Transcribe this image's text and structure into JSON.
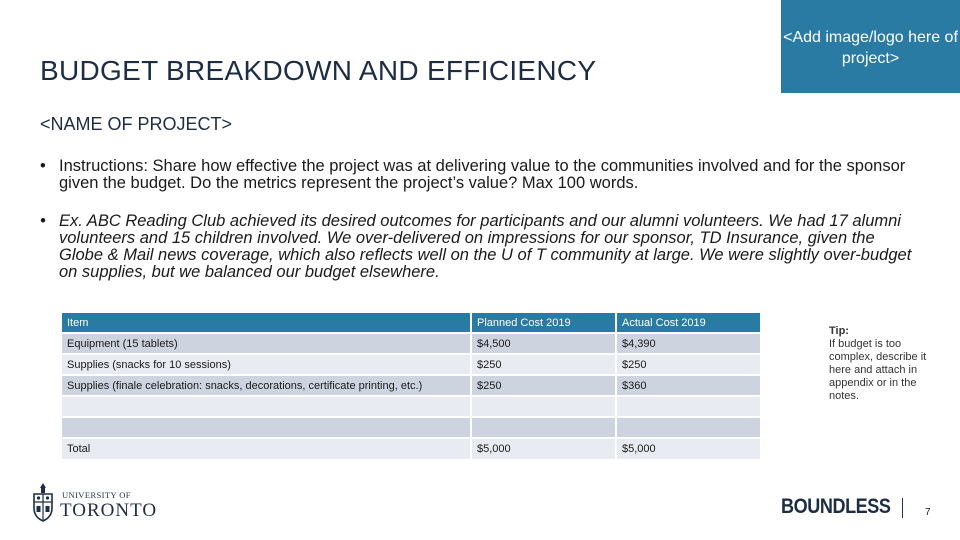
{
  "slide": {
    "title": "BUDGET BREAKDOWN AND EFFICIENCY",
    "project_name": "<NAME OF PROJECT>",
    "logo_placeholder": "<Add image/logo here of project>",
    "bullets": [
      "Instructions: Share how effective the project was at delivering value to the communities involved and for the sponsor given the budget. Do the metrics represent the project’s value? Max 100 words.",
      "Ex. ABC Reading Club achieved its desired outcomes for participants and our alumni volunteers. We had 17 alumni volunteers and 15 children involved. We over-delivered on impressions for our sponsor, TD Insurance, given the Globe & Mail news coverage, which also reflects well on the U of T community at large. We were slightly over-budget on supplies, but we balanced our budget elsewhere."
    ],
    "page_number": "7"
  },
  "table": {
    "headers": [
      "Item",
      "Planned Cost 2019",
      "Actual Cost 2019"
    ],
    "rows": [
      [
        "Equipment (15 tablets)",
        "$4,500",
        "$4,390"
      ],
      [
        "Supplies (snacks for 10 sessions)",
        "$250",
        "$250"
      ],
      [
        "Supplies (finale celebration: snacks, decorations, certificate printing, etc.)",
        "$250",
        "$360"
      ],
      [
        "",
        "",
        ""
      ],
      [
        "",
        "",
        ""
      ],
      [
        "Total",
        "$5,000",
        "$5,000"
      ]
    ]
  },
  "tip": {
    "title": "Tip:",
    "text": "If budget is too complex, describe it here and attach in appendix or in the notes."
  },
  "footer": {
    "university_small": "UNIVERSITY OF",
    "university_big": "TORONTO",
    "brand": "BOUNDLESS"
  },
  "colors": {
    "accent": "#2a7ba3",
    "row_dark": "#ced4df",
    "row_light": "#e8ebf1",
    "title_text": "#1d2d44"
  },
  "icons": [
    "crest-icon"
  ]
}
